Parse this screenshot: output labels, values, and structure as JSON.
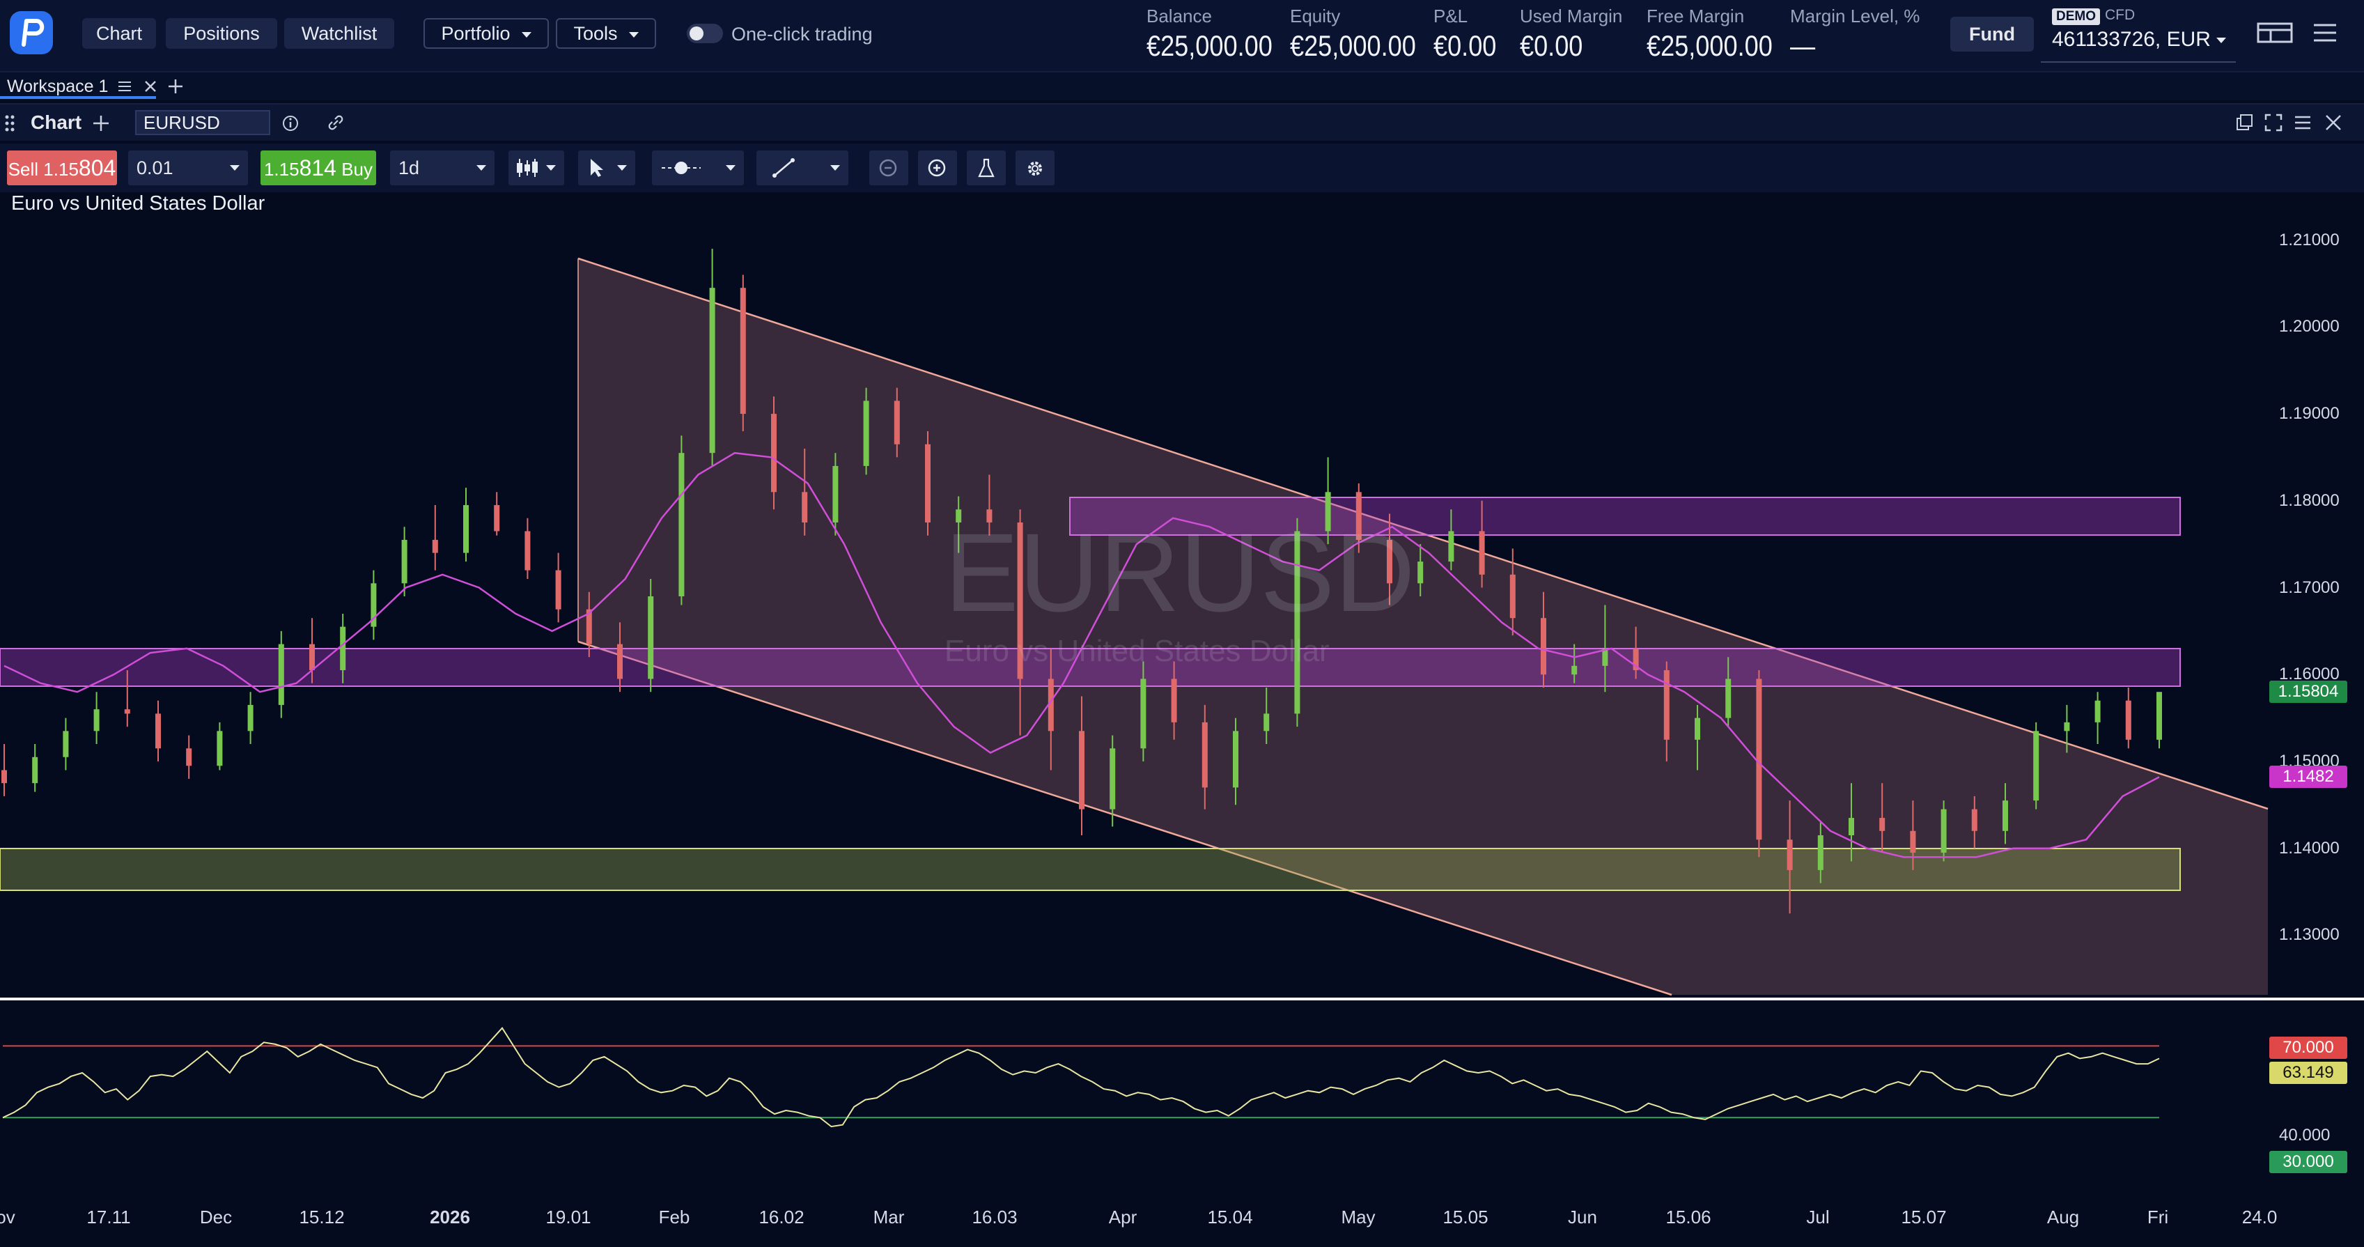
{
  "topbar": {
    "nav": [
      "Chart",
      "Positions",
      "Watchlist"
    ],
    "portfolio": "Portfolio",
    "tools": "Tools",
    "one_click": "One-click trading",
    "account": [
      {
        "label": "Balance",
        "value": "€25,000.00"
      },
      {
        "label": "Equity",
        "value": "€25,000.00"
      },
      {
        "label": "P&L",
        "value": "€0.00"
      },
      {
        "label": "Used Margin",
        "value": "€0.00"
      },
      {
        "label": "Free Margin",
        "value": "€25,000.00"
      },
      {
        "label": "Margin Level, %",
        "value": "—"
      }
    ],
    "fund": "Fund",
    "demo_badge": "DEMO",
    "account_type": "CFD",
    "account_id": "461133726, EUR"
  },
  "workspace": {
    "tab": "Workspace 1"
  },
  "chart_panel": {
    "title": "Chart",
    "symbol": "EURUSD"
  },
  "toolbar": {
    "sell_label": "Sell",
    "sell_price_main": "1.15",
    "sell_price_big": "804",
    "quantity": "0.01",
    "buy_price_main": "1.15",
    "buy_price_big": "814",
    "buy_label": "Buy",
    "timeframe": "1d"
  },
  "chart_data": {
    "type": "candlestick",
    "title": "Euro vs United States Dollar",
    "watermark": "EURUSD",
    "watermark_sub": "Euro vs United States Dollar",
    "y_ticks": [
      "1.21000",
      "1.20000",
      "1.19000",
      "1.18000",
      "1.17000",
      "1.16000",
      "1.15000",
      "1.14000",
      "1.13000"
    ],
    "ylim": [
      1.1225,
      1.2155
    ],
    "x_ticks": [
      "ov",
      "17.11",
      "Dec",
      "15.12",
      "2026",
      "19.01",
      "Feb",
      "16.02",
      "Mar",
      "16.03",
      "Apr",
      "15.04",
      "May",
      "15.05",
      "Jun",
      "15.06",
      "Jul",
      "15.07",
      "Aug",
      "Fri",
      "24.0"
    ],
    "last_price": "1.15804",
    "ma_value": "1.1482",
    "ma_series": [
      1.161,
      1.159,
      1.158,
      1.16,
      1.1625,
      1.163,
      1.161,
      1.158,
      1.159,
      1.1625,
      1.166,
      1.17,
      1.1715,
      1.17,
      1.167,
      1.165,
      1.167,
      1.171,
      1.178,
      1.183,
      1.1855,
      1.185,
      1.182,
      1.175,
      1.166,
      1.159,
      1.154,
      1.151,
      1.153,
      1.159,
      1.167,
      1.175,
      1.178,
      1.177,
      1.175,
      1.173,
      1.172,
      1.175,
      1.177,
      1.174,
      1.17,
      1.166,
      1.163,
      1.162,
      1.163,
      1.16,
      1.158,
      1.155,
      1.15,
      1.146,
      1.142,
      1.14,
      1.139,
      1.139,
      1.139,
      1.14,
      1.14,
      1.141,
      1.146,
      1.1482
    ],
    "candles": [
      [
        1.149,
        1.152,
        1.146,
        1.1475
      ],
      [
        1.1475,
        1.152,
        1.1465,
        1.1505
      ],
      [
        1.1505,
        1.155,
        1.149,
        1.1535
      ],
      [
        1.1535,
        1.158,
        1.152,
        1.156
      ],
      [
        1.156,
        1.1605,
        1.154,
        1.1555
      ],
      [
        1.1555,
        1.157,
        1.15,
        1.1515
      ],
      [
        1.1515,
        1.153,
        1.148,
        1.1495
      ],
      [
        1.1495,
        1.1545,
        1.149,
        1.1535
      ],
      [
        1.1535,
        1.158,
        1.152,
        1.1565
      ],
      [
        1.1565,
        1.165,
        1.155,
        1.1635
      ],
      [
        1.1635,
        1.1665,
        1.159,
        1.1605
      ],
      [
        1.1605,
        1.167,
        1.159,
        1.1655
      ],
      [
        1.1655,
        1.172,
        1.164,
        1.1705
      ],
      [
        1.1705,
        1.177,
        1.169,
        1.1755
      ],
      [
        1.1755,
        1.1795,
        1.172,
        1.174
      ],
      [
        1.174,
        1.1815,
        1.173,
        1.1795
      ],
      [
        1.1795,
        1.181,
        1.176,
        1.1765
      ],
      [
        1.1765,
        1.178,
        1.171,
        1.172
      ],
      [
        1.172,
        1.174,
        1.166,
        1.1675
      ],
      [
        1.1675,
        1.1695,
        1.162,
        1.1635
      ],
      [
        1.1635,
        1.166,
        1.158,
        1.1595
      ],
      [
        1.1595,
        1.171,
        1.158,
        1.169
      ],
      [
        1.169,
        1.1875,
        1.168,
        1.1855
      ],
      [
        1.1855,
        1.209,
        1.184,
        1.2045
      ],
      [
        1.2045,
        1.206,
        1.188,
        1.19
      ],
      [
        1.19,
        1.192,
        1.179,
        1.181
      ],
      [
        1.181,
        1.186,
        1.176,
        1.1775
      ],
      [
        1.1775,
        1.1855,
        1.176,
        1.184
      ],
      [
        1.184,
        1.193,
        1.183,
        1.1915
      ],
      [
        1.1915,
        1.193,
        1.185,
        1.1865
      ],
      [
        1.1865,
        1.188,
        1.176,
        1.1775
      ],
      [
        1.1775,
        1.1805,
        1.174,
        1.179
      ],
      [
        1.179,
        1.183,
        1.176,
        1.1775
      ],
      [
        1.1775,
        1.179,
        1.153,
        1.1595
      ],
      [
        1.1595,
        1.163,
        1.149,
        1.1535
      ],
      [
        1.1535,
        1.1575,
        1.1415,
        1.1445
      ],
      [
        1.1445,
        1.153,
        1.1425,
        1.1515
      ],
      [
        1.1515,
        1.1615,
        1.15,
        1.1595
      ],
      [
        1.1595,
        1.1615,
        1.1525,
        1.1545
      ],
      [
        1.1545,
        1.1565,
        1.1445,
        1.147
      ],
      [
        1.147,
        1.155,
        1.145,
        1.1535
      ],
      [
        1.1535,
        1.1585,
        1.152,
        1.1555
      ],
      [
        1.1555,
        1.178,
        1.154,
        1.1765
      ],
      [
        1.1765,
        1.185,
        1.175,
        1.181
      ],
      [
        1.181,
        1.182,
        1.174,
        1.1755
      ],
      [
        1.1755,
        1.1785,
        1.168,
        1.1705
      ],
      [
        1.1705,
        1.175,
        1.169,
        1.173
      ],
      [
        1.173,
        1.179,
        1.172,
        1.1765
      ],
      [
        1.1765,
        1.18,
        1.17,
        1.1715
      ],
      [
        1.1715,
        1.1745,
        1.1645,
        1.1665
      ],
      [
        1.1665,
        1.1695,
        1.1585,
        1.16
      ],
      [
        1.16,
        1.1635,
        1.159,
        1.161
      ],
      [
        1.161,
        1.168,
        1.158,
        1.163
      ],
      [
        1.163,
        1.1655,
        1.1595,
        1.1605
      ],
      [
        1.1605,
        1.1615,
        1.15,
        1.1525
      ],
      [
        1.1525,
        1.1565,
        1.149,
        1.155
      ],
      [
        1.155,
        1.162,
        1.154,
        1.1595
      ],
      [
        1.1595,
        1.1605,
        1.139,
        1.141
      ],
      [
        1.141,
        1.1455,
        1.1325,
        1.1375
      ],
      [
        1.1375,
        1.143,
        1.136,
        1.1415
      ]
    ],
    "candle_extra": [
      [
        1.1415,
        1.1475,
        1.1385,
        1.1435
      ],
      [
        1.1435,
        1.1475,
        1.1395,
        1.142
      ],
      [
        1.142,
        1.1455,
        1.1375,
        1.1395
      ],
      [
        1.1395,
        1.1455,
        1.1385,
        1.1445
      ],
      [
        1.1445,
        1.146,
        1.14,
        1.142
      ],
      [
        1.142,
        1.1475,
        1.1405,
        1.1455
      ],
      [
        1.1455,
        1.1545,
        1.1445,
        1.1535
      ],
      [
        1.1535,
        1.1565,
        1.151,
        1.1545
      ],
      [
        1.1545,
        1.158,
        1.152,
        1.157
      ],
      [
        1.157,
        1.1585,
        1.1515,
        1.1525
      ],
      [
        1.1525,
        1.1575,
        1.1515,
        1.158
      ]
    ],
    "rsi": {
      "levels": [
        "70.000",
        "63.149",
        "40.000",
        "30.000"
      ],
      "series": [
        30,
        33,
        37,
        44,
        47,
        49,
        53,
        55,
        50,
        44,
        46,
        40,
        45,
        53,
        54,
        53,
        57,
        62,
        67,
        61,
        55,
        64,
        67,
        72,
        71,
        69,
        64,
        67,
        71,
        68,
        65,
        62,
        60,
        58,
        49,
        46,
        43,
        41,
        45,
        55,
        57,
        60,
        66,
        73,
        80,
        70,
        60,
        55,
        50,
        47,
        49,
        55,
        62,
        64,
        60,
        56,
        50,
        46,
        44,
        45,
        48,
        47,
        42,
        45,
        52,
        50,
        44,
        36,
        32,
        34,
        33,
        31,
        30,
        25,
        26,
        36,
        40,
        41,
        45,
        50,
        52,
        55,
        58,
        62,
        65,
        68,
        66,
        62,
        57,
        54,
        56,
        55,
        58,
        60,
        57,
        53,
        50,
        46,
        45,
        42,
        44,
        43,
        40,
        41,
        39,
        35,
        33,
        34,
        31,
        35,
        40,
        42,
        44,
        41,
        43,
        45,
        44,
        47,
        46,
        43,
        46,
        48,
        51,
        52,
        50,
        55,
        58,
        62,
        59,
        56,
        55,
        56,
        53,
        49,
        51,
        48,
        45,
        46,
        43,
        42,
        40,
        38,
        36,
        33,
        34,
        38,
        36,
        33,
        32,
        30,
        29,
        32,
        35,
        37,
        39,
        41,
        43,
        40,
        42,
        39,
        41,
        43,
        41,
        44,
        46,
        44,
        48,
        50,
        48,
        56,
        55,
        50,
        46,
        45,
        48,
        47,
        43,
        42,
        44,
        47,
        56,
        64,
        66,
        63,
        64,
        66,
        64,
        62,
        60,
        60,
        63
      ]
    }
  }
}
